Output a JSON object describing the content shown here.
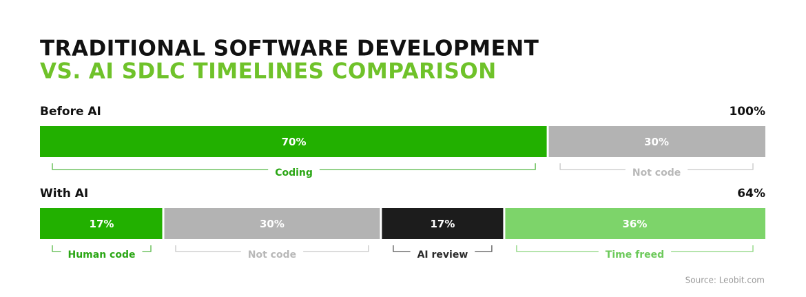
{
  "chart_data": {
    "type": "stacked_bar",
    "title": "TRADITIONAL SOFTWARE DEVELOPMENT",
    "subtitle": "VS. AI SDLC TIMELINES COMPARISON",
    "source": "Source: Leobit.com",
    "xlim": [
      0,
      100
    ],
    "rows": [
      {
        "name": "Before AI",
        "total": {
          "value": 100,
          "label": "100%"
        },
        "segments": [
          {
            "name": "Coding",
            "value": 70,
            "value_label": "70%",
            "color": "#22b000",
            "label_color": "#2aa614"
          },
          {
            "name": "Not code",
            "value": 30,
            "value_label": "30%",
            "color": "#b3b3b3",
            "label_color": "#b8b8b8"
          }
        ]
      },
      {
        "name": "With AI",
        "total": {
          "value": 64,
          "label": "64%"
        },
        "segments": [
          {
            "name": "Human code",
            "value": 17,
            "value_label": "17%",
            "color": "#22b000",
            "label_color": "#2aa614"
          },
          {
            "name": "Not code",
            "value": 30,
            "value_label": "30%",
            "color": "#b3b3b3",
            "label_color": "#b8b8b8"
          },
          {
            "name": "AI review",
            "value": 17,
            "value_label": "17%",
            "color": "#1c1c1c",
            "label_color": "#2a2a2a"
          },
          {
            "name": "Time freed",
            "value": 36,
            "value_label": "36%",
            "color": "#7dd46a",
            "label_color": "#6cc95a"
          }
        ]
      }
    ]
  }
}
